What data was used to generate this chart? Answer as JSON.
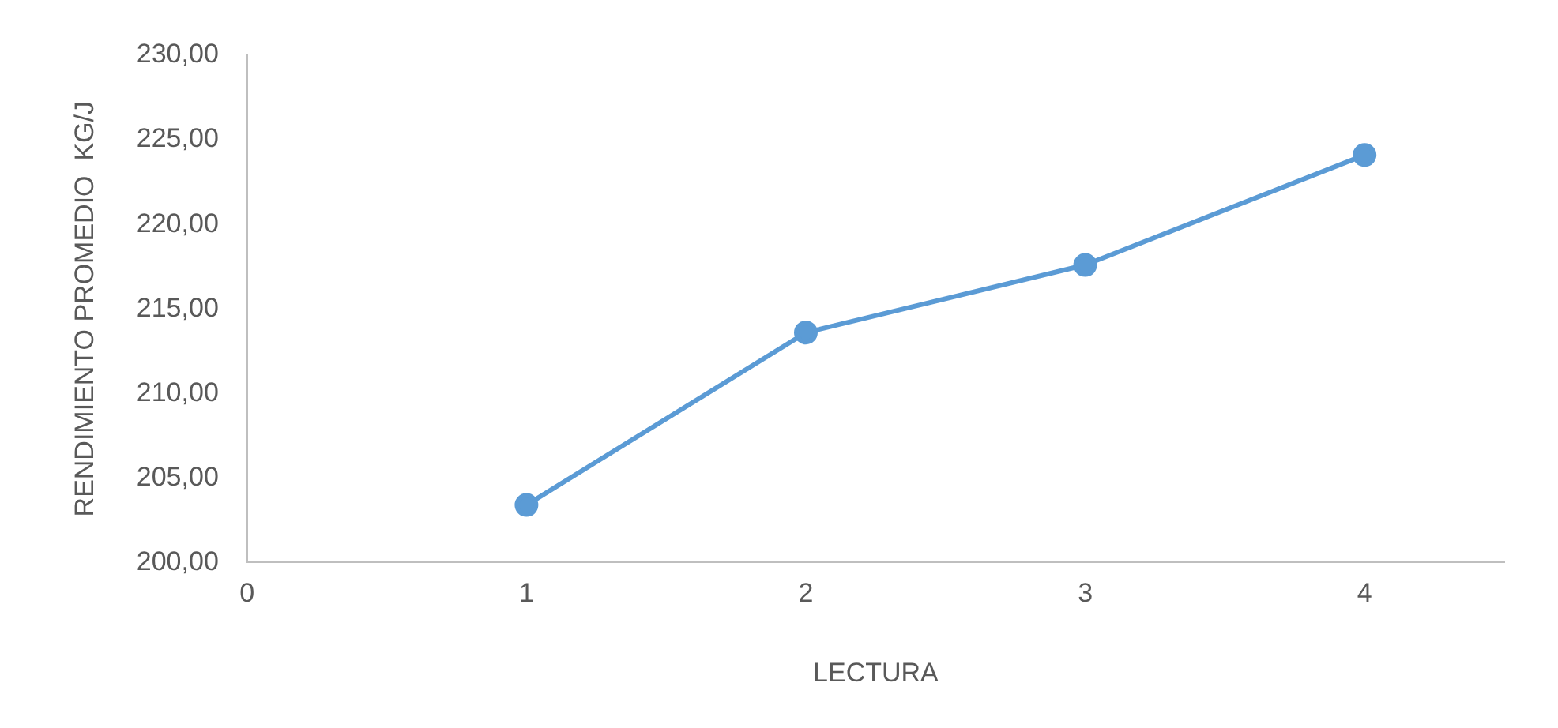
{
  "chart_data": {
    "type": "line",
    "xlabel": "LECTURA",
    "ylabel": "RENDIMIENTO PROMEDIO  KG/J",
    "x": [
      1,
      2,
      3,
      4
    ],
    "series": [
      {
        "color": "#5b9bd5",
        "values": [
          203.4,
          213.6,
          217.6,
          224.1
        ]
      }
    ],
    "xlim": [
      0,
      4.5
    ],
    "xticks": [
      0,
      1,
      2,
      3,
      4
    ],
    "ylim": [
      200,
      230
    ],
    "yticks": [
      {
        "value": 200,
        "label": "200,00"
      },
      {
        "value": 205,
        "label": "205,00"
      },
      {
        "value": 210,
        "label": "210,00"
      },
      {
        "value": 215,
        "label": "215,00"
      },
      {
        "value": 220,
        "label": "220,00"
      },
      {
        "value": 225,
        "label": "225,00"
      },
      {
        "value": 230,
        "label": "230,00"
      }
    ],
    "grid": false,
    "legend": false,
    "marker": "circle",
    "line_style": "solid"
  }
}
